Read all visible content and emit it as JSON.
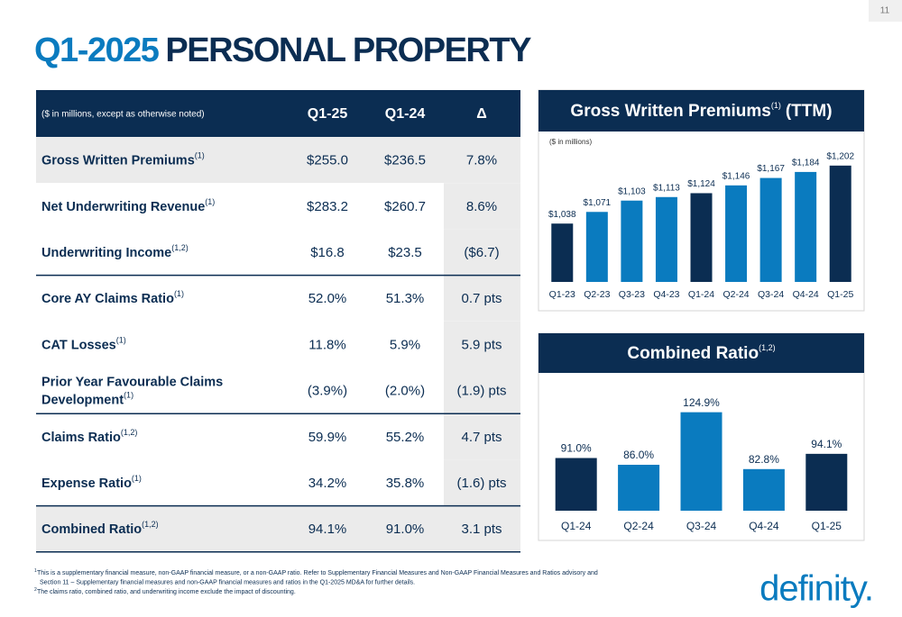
{
  "page_number": "11",
  "title": {
    "highlight": "Q1-2025",
    "rest": "PERSONAL PROPERTY"
  },
  "table": {
    "header": [
      "($ in millions, except as otherwise noted)",
      "Q1-25",
      "Q1-24",
      "Δ"
    ],
    "rows": [
      {
        "label": [
          "Gross Written Premiums"
        ],
        "note": "(1)",
        "values": [
          "$255.0",
          "$236.5",
          "7.8%"
        ]
      },
      {
        "label": [
          "Net Underwriting Revenue"
        ],
        "note": "(1)",
        "values": [
          "$283.2",
          "$260.7",
          "8.6%"
        ]
      },
      {
        "label": [
          "Underwriting Income"
        ],
        "note": "(1,2)",
        "values": [
          "$16.8",
          "$23.5",
          "($6.7)"
        ]
      },
      {
        "label": [
          "Core AY Claims Ratio"
        ],
        "note": "(1)",
        "values": [
          "52.0%",
          "51.3%",
          "0.7 pts"
        ]
      },
      {
        "label": [
          "CAT Losses"
        ],
        "note": "(1)",
        "values": [
          "11.8%",
          "5.9%",
          "5.9 pts"
        ]
      },
      {
        "label": [
          "Prior Year Favourable Claims",
          "Development"
        ],
        "note": "(1)",
        "values": [
          "(3.9%)",
          "(2.0%)",
          "(1.9) pts"
        ]
      },
      {
        "label": [
          "Claims Ratio"
        ],
        "note": "(1,2)",
        "values": [
          "59.9%",
          "55.2%",
          "4.7 pts"
        ]
      },
      {
        "label": [
          "Expense Ratio"
        ],
        "note": "(1)",
        "values": [
          "34.2%",
          "35.8%",
          "(1.6) pts"
        ]
      },
      {
        "label": [
          "Combined Ratio"
        ],
        "note": "(1,2)",
        "values": [
          "94.1%",
          "91.0%",
          "3.1 pts"
        ]
      }
    ]
  },
  "chart_data": [
    {
      "type": "bar",
      "title": "Gross Written Premiums",
      "title_note": "(1)",
      "title_suffix": "(TTM)",
      "subtitle": "($ in millions)",
      "categories": [
        "Q1-23",
        "Q2-23",
        "Q3-23",
        "Q4-23",
        "Q1-24",
        "Q2-24",
        "Q3-24",
        "Q4-24",
        "Q1-25"
      ],
      "values": [
        1038,
        1071,
        1103,
        1113,
        1124,
        1146,
        1167,
        1184,
        1202
      ],
      "value_labels": [
        "$1,038",
        "$1,071",
        "$1,103",
        "$1,113",
        "$1,124",
        "$1,146",
        "$1,167",
        "$1,184",
        "$1,202"
      ],
      "colors": [
        "#0b2d52",
        "#0a7bbf",
        "#0a7bbf",
        "#0a7bbf",
        "#0b2d52",
        "#0a7bbf",
        "#0a7bbf",
        "#0a7bbf",
        "#0b2d52"
      ],
      "ylim": [
        873,
        1250
      ]
    },
    {
      "type": "bar",
      "title": "Combined Ratio",
      "title_note": "(1,2)",
      "categories": [
        "Q1-24",
        "Q2-24",
        "Q3-24",
        "Q4-24",
        "Q1-25"
      ],
      "values": [
        91.0,
        86.0,
        124.9,
        82.8,
        94.1
      ],
      "value_labels": [
        "91.0%",
        "86.0%",
        "124.9%",
        "82.8%",
        "94.1%"
      ],
      "colors": [
        "#0b2d52",
        "#0a7bbf",
        "#0a7bbf",
        "#0a7bbf",
        "#0b2d52"
      ],
      "ylim": [
        52,
        140
      ]
    }
  ],
  "footnotes": [
    {
      "marker": "1",
      "lines": [
        "This is a supplementary financial measure, non-GAAP financial measure, or a non-GAAP ratio. Refer to Supplementary Financial Measures and Non-GAAP Financial Measures and Ratios advisory and",
        "Section 11 – Supplementary financial measures and non-GAAP financial measures and ratios in the Q1-2025 MD&A for further details."
      ]
    },
    {
      "marker": "2",
      "lines": [
        "The claims ratio, combined ratio, and underwriting income exclude the impact of discounting."
      ]
    }
  ],
  "logo": "definity."
}
